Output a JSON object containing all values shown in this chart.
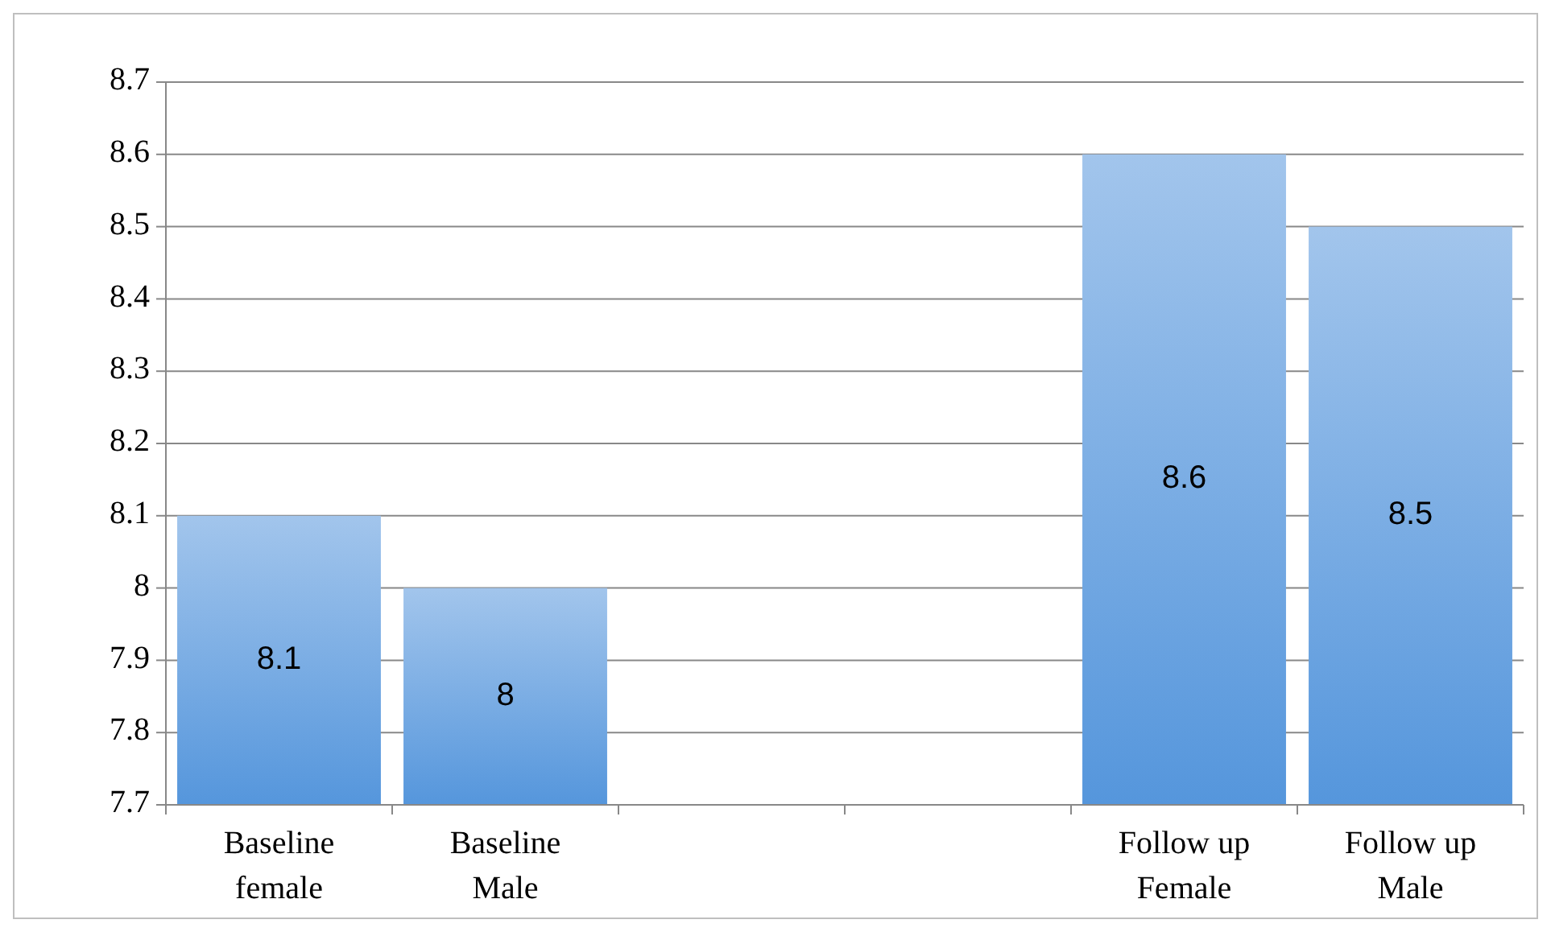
{
  "chart_data": {
    "type": "bar",
    "categories": [
      "Baseline female",
      "Baseline Male",
      null,
      null,
      "Follow up Female",
      "Follow up Male"
    ],
    "values": [
      8.1,
      8,
      null,
      null,
      8.6,
      8.5
    ],
    "color": "#5596dc",
    "ylim": [
      7.7,
      8.7
    ],
    "yticks": [
      7.7,
      7.8,
      7.9,
      8,
      8.1,
      8.2,
      8.3,
      8.4,
      8.5,
      8.6,
      8.7
    ],
    "grid": "y",
    "data_labels": true
  }
}
